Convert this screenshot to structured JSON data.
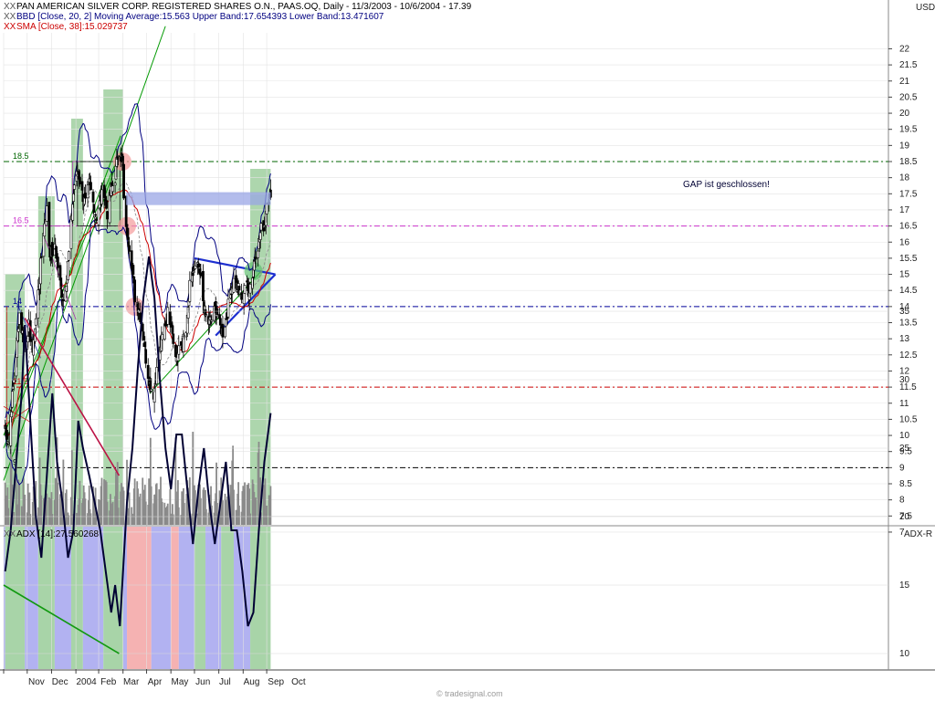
{
  "header": {
    "title": "PAN AMERICAN SILVER CORP. REGISTERED SHARES O.N., PAAS.OQ, Daily - 11/3/2003 - 10/6/2004 - 17.39",
    "bbd_legend": "BBD [Close, 20, 2] Moving Average:15.563 Upper Band:17.654393 Lower Band:13.471607",
    "sma_legend": "SMA [Close, 38]:15.029737",
    "adx_legend": "ADX [14]:27.560268",
    "unit_top": "USD",
    "unit_bottom": "ADX-R",
    "marker": "XX",
    "watermark": "© tradesignal.com"
  },
  "annotation": {
    "gap_text": "GAP ist geschlossen!"
  },
  "colors": {
    "green_zone": "#9fcf9f",
    "blue_zone": "#aaaaf0",
    "red_zone": "#f4aaaa",
    "price_bars": "#000000",
    "upper_lower_band": "#000080",
    "bb_middle": "#888888",
    "sma": "#cc0000",
    "adx": "#000033",
    "gap_box": "#9aa6e6",
    "level_18_5": "#006600",
    "level_16_5": "#cc33cc",
    "level_14": "#000099",
    "level_11_5": "#cc0000",
    "level_9": "#000000"
  },
  "chart_data": [
    {
      "type": "candlestick",
      "title": "PAAS.OQ Daily",
      "ylabel": "USD",
      "ylim": [
        6.5,
        22.5
      ],
      "y_ticks": [
        7,
        7.5,
        8,
        8.5,
        9,
        9.5,
        10,
        10.5,
        11,
        11.5,
        12,
        12.5,
        13,
        13.5,
        14,
        14.5,
        15,
        15.5,
        16,
        16.5,
        17,
        17.5,
        18,
        18.5,
        19,
        19.5,
        20,
        20.5,
        21,
        21.5,
        22
      ],
      "x_labels": [
        "Nov",
        "Dec",
        "2004",
        "Feb",
        "Mar",
        "Apr",
        "May",
        "Jun",
        "Jul",
        "Aug",
        "Sep",
        "Oct"
      ],
      "horizontal_levels": [
        {
          "label": "18.5",
          "value": 18.5
        },
        {
          "label": "16.5",
          "value": 16.5
        },
        {
          "label": "14",
          "value": 14
        },
        {
          "label": "11.5",
          "value": 11.5
        },
        {
          "label": "9",
          "value": 9
        }
      ],
      "close_path": [
        [
          "2003-11-03",
          10.3
        ],
        [
          "2003-11-07",
          9.8
        ],
        [
          "2003-11-12",
          11.2
        ],
        [
          "2003-11-17",
          12.6
        ],
        [
          "2003-11-21",
          13.8
        ],
        [
          "2003-11-24",
          13.3
        ],
        [
          "2003-11-28",
          12.8
        ],
        [
          "2003-12-03",
          13.4
        ],
        [
          "2003-12-08",
          12.6
        ],
        [
          "2003-12-12",
          13.6
        ],
        [
          "2003-12-17",
          15.0
        ],
        [
          "2003-12-22",
          16.4
        ],
        [
          "2003-12-26",
          17.0
        ],
        [
          "2003-12-30",
          15.6
        ],
        [
          "2004-01-06",
          15.8
        ],
        [
          "2004-01-12",
          14.7
        ],
        [
          "2004-01-16",
          14.2
        ],
        [
          "2004-01-21",
          15.0
        ],
        [
          "2004-01-26",
          16.6
        ],
        [
          "2004-01-30",
          17.8
        ],
        [
          "2004-02-04",
          18.2
        ],
        [
          "2004-02-09",
          17.5
        ],
        [
          "2004-02-13",
          17.2
        ],
        [
          "2004-02-18",
          17.8
        ],
        [
          "2004-02-24",
          17.1
        ],
        [
          "2004-02-27",
          16.8
        ],
        [
          "2004-03-03",
          17.3
        ],
        [
          "2004-03-08",
          17.6
        ],
        [
          "2004-03-12",
          16.9
        ],
        [
          "2004-03-17",
          17.6
        ],
        [
          "2004-03-22",
          18.0
        ],
        [
          "2004-03-26",
          18.9
        ],
        [
          "2004-03-30",
          18.6
        ],
        [
          "2004-04-01",
          18.3
        ],
        [
          "2004-04-02",
          17.2
        ],
        [
          "2004-04-06",
          16.4
        ],
        [
          "2004-04-12",
          15.4
        ],
        [
          "2004-04-16",
          14.3
        ],
        [
          "2004-04-21",
          14.0
        ],
        [
          "2004-04-26",
          13.3
        ],
        [
          "2004-04-30",
          12.4
        ],
        [
          "2004-05-05",
          11.6
        ],
        [
          "2004-05-10",
          11.3
        ],
        [
          "2004-05-14",
          12.0
        ],
        [
          "2004-05-19",
          12.8
        ],
        [
          "2004-05-24",
          13.4
        ],
        [
          "2004-05-28",
          13.8
        ],
        [
          "2004-06-02",
          13.5
        ],
        [
          "2004-06-07",
          12.4
        ],
        [
          "2004-06-11",
          12.6
        ],
        [
          "2004-06-16",
          12.9
        ],
        [
          "2004-06-21",
          13.2
        ],
        [
          "2004-06-25",
          14.6
        ],
        [
          "2004-06-30",
          15.1
        ],
        [
          "2004-07-06",
          15.2
        ],
        [
          "2004-07-09",
          14.8
        ],
        [
          "2004-07-14",
          13.8
        ],
        [
          "2004-07-19",
          13.5
        ],
        [
          "2004-07-23",
          13.6
        ],
        [
          "2004-07-28",
          14.0
        ],
        [
          "2004-08-02",
          13.4
        ],
        [
          "2004-08-06",
          13.2
        ],
        [
          "2004-08-11",
          13.7
        ],
        [
          "2004-08-16",
          14.5
        ],
        [
          "2004-08-20",
          14.8
        ],
        [
          "2004-08-25",
          14.6
        ],
        [
          "2004-08-31",
          14.2
        ],
        [
          "2004-09-03",
          14.7
        ],
        [
          "2004-09-08",
          14.5
        ],
        [
          "2004-09-13",
          15.0
        ],
        [
          "2004-09-16",
          15.6
        ],
        [
          "2004-09-21",
          16.0
        ],
        [
          "2004-09-24",
          16.4
        ],
        [
          "2004-09-29",
          16.6
        ],
        [
          "2004-10-01",
          17.4
        ],
        [
          "2004-10-06",
          17.39
        ]
      ],
      "gap_box": {
        "x_start": "2004-04-05",
        "x_end": "2004-10-06",
        "y_low": 17.15,
        "y_high": 17.55
      }
    },
    {
      "type": "bar",
      "title": "Volume",
      "note": "volume histogram drawn without its own scale"
    },
    {
      "type": "line",
      "title": "ADX [14]",
      "ylabel": "ADX-R",
      "ylim": [
        7,
        41
      ],
      "y_ticks": [
        10,
        15,
        20,
        25,
        30,
        35
      ],
      "last_value": 27.560268,
      "series": [
        {
          "name": "ADX [14]",
          "values": [
            [
              "2003-11-03",
              16
            ],
            [
              "2003-11-10",
              19
            ],
            [
              "2003-11-17",
              24
            ],
            [
              "2003-11-24",
              29
            ],
            [
              "2003-11-28",
              34
            ],
            [
              "2003-12-05",
              27
            ],
            [
              "2003-12-12",
              20
            ],
            [
              "2003-12-19",
              17
            ],
            [
              "2003-12-26",
              23
            ],
            [
              "2004-01-02",
              29
            ],
            [
              "2004-01-08",
              24
            ],
            [
              "2004-01-15",
              21
            ],
            [
              "2004-01-22",
              17
            ],
            [
              "2004-01-29",
              19
            ],
            [
              "2004-02-04",
              27
            ],
            [
              "2004-02-10",
              25
            ],
            [
              "2004-02-18",
              23
            ],
            [
              "2004-02-25",
              21
            ],
            [
              "2004-03-03",
              19
            ],
            [
              "2004-03-10",
              16
            ],
            [
              "2004-03-17",
              13
            ],
            [
              "2004-03-22",
              15
            ],
            [
              "2004-03-28",
              12
            ],
            [
              "2004-04-02",
              17
            ],
            [
              "2004-04-06",
              21
            ],
            [
              "2004-04-13",
              25
            ],
            [
              "2004-04-20",
              31
            ],
            [
              "2004-04-27",
              36
            ],
            [
              "2004-05-04",
              39
            ],
            [
              "2004-05-11",
              36
            ],
            [
              "2004-05-18",
              30
            ],
            [
              "2004-05-25",
              25
            ],
            [
              "2004-06-01",
              22
            ],
            [
              "2004-06-08",
              26
            ],
            [
              "2004-06-15",
              26
            ],
            [
              "2004-06-22",
              22
            ],
            [
              "2004-06-29",
              18
            ],
            [
              "2004-07-06",
              22
            ],
            [
              "2004-07-13",
              25
            ],
            [
              "2004-07-20",
              21
            ],
            [
              "2004-07-27",
              18
            ],
            [
              "2004-08-03",
              21
            ],
            [
              "2004-08-10",
              24
            ],
            [
              "2004-08-17",
              19
            ],
            [
              "2004-08-24",
              19
            ],
            [
              "2004-08-31",
              16
            ],
            [
              "2004-09-07",
              12
            ],
            [
              "2004-09-14",
              13
            ],
            [
              "2004-09-21",
              19
            ],
            [
              "2004-09-28",
              24
            ],
            [
              "2004-10-06",
              27.56
            ]
          ]
        }
      ]
    }
  ]
}
